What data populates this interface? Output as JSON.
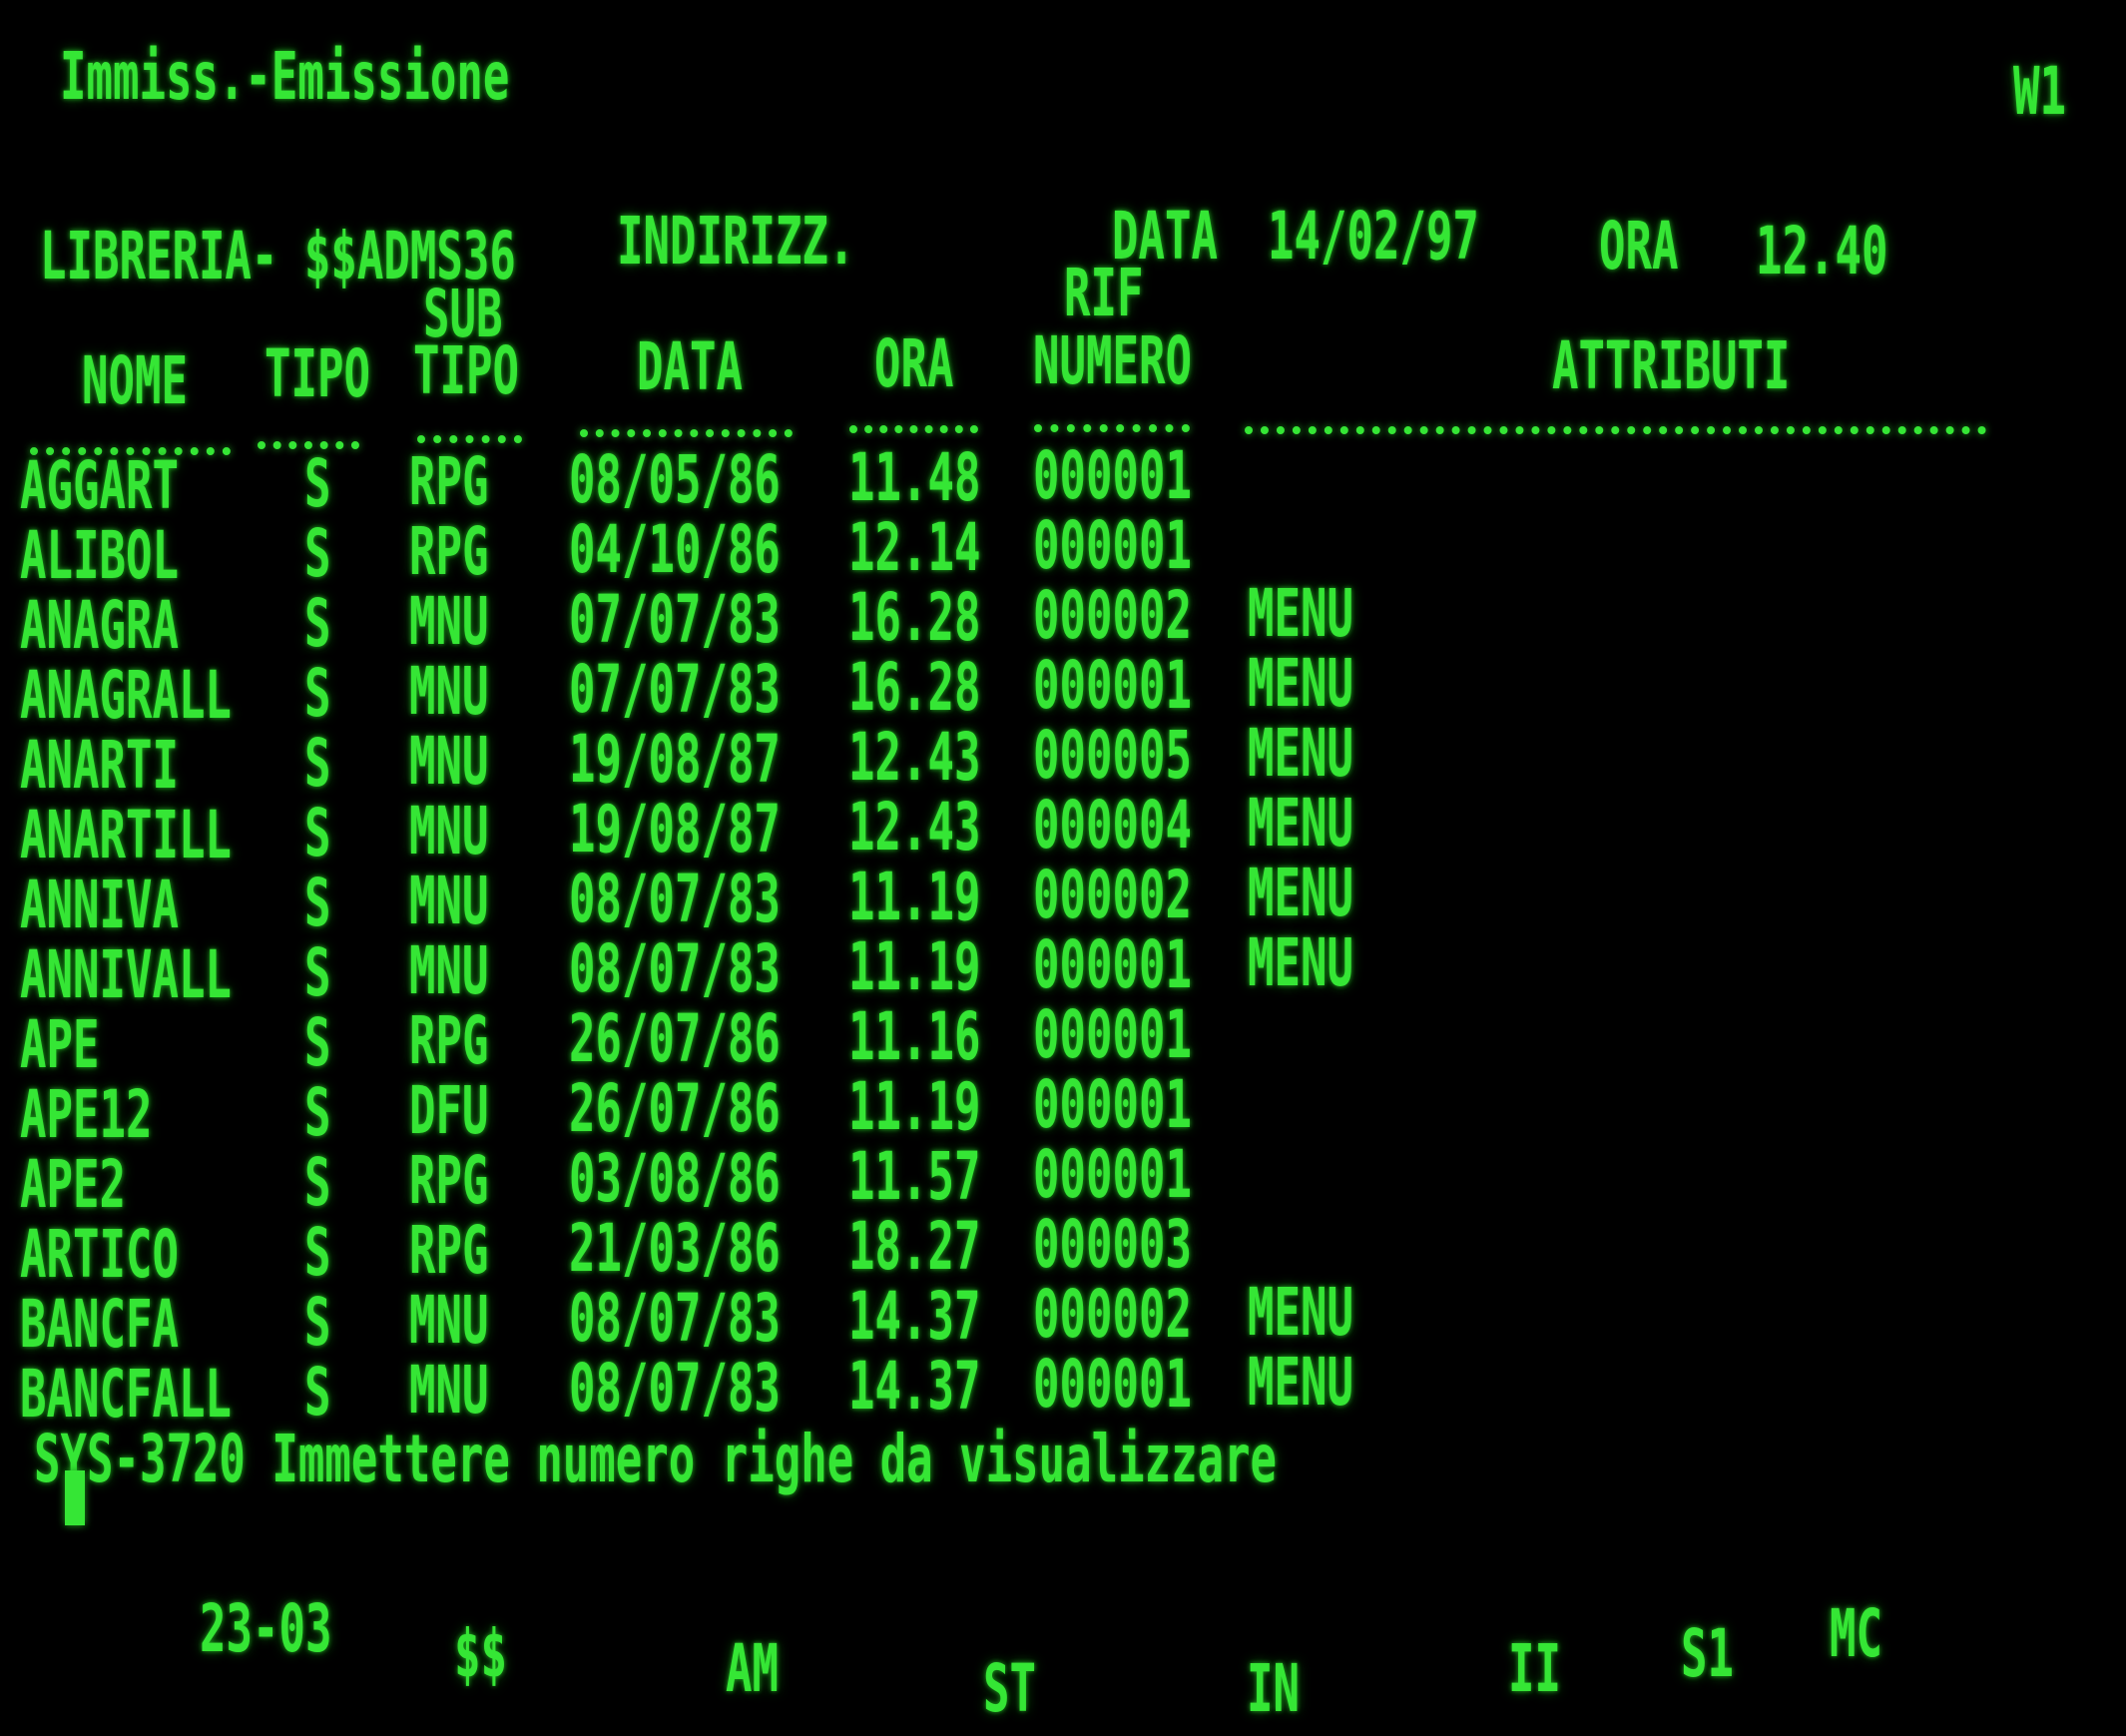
{
  "header": {
    "title": "Immiss.-Emissione",
    "window_id": "W1",
    "library_label": "LIBRERIA- $$ADMS36",
    "mode": "INDIRIZZ.",
    "date_label": "DATA",
    "date_value": "14/02/97",
    "time_label": "ORA",
    "time_value": "12.40"
  },
  "columns": {
    "nome": "NOME",
    "tipo": "TIPO",
    "sub": "SUB",
    "subtipo": "TIPO",
    "data": "DATA",
    "ora": "ORA",
    "rif": "RIF",
    "numero": "NUMERO",
    "attributi": "ATTRIBUTI"
  },
  "rows": [
    [
      "AGGART",
      "S",
      "RPG",
      "08/05/86",
      "11.48",
      "000001",
      ""
    ],
    [
      "ALIBOL",
      "S",
      "RPG",
      "04/10/86",
      "12.14",
      "000001",
      ""
    ],
    [
      "ANAGRA",
      "S",
      "MNU",
      "07/07/83",
      "16.28",
      "000002",
      "MENU"
    ],
    [
      "ANAGRALL",
      "S",
      "MNU",
      "07/07/83",
      "16.28",
      "000001",
      "MENU"
    ],
    [
      "ANARTI",
      "S",
      "MNU",
      "19/08/87",
      "12.43",
      "000005",
      "MENU"
    ],
    [
      "ANARTILL",
      "S",
      "MNU",
      "19/08/87",
      "12.43",
      "000004",
      "MENU"
    ],
    [
      "ANNIVA",
      "S",
      "MNU",
      "08/07/83",
      "11.19",
      "000002",
      "MENU"
    ],
    [
      "ANNIVALL",
      "S",
      "MNU",
      "08/07/83",
      "11.19",
      "000001",
      "MENU"
    ],
    [
      "APE",
      "S",
      "RPG",
      "26/07/86",
      "11.16",
      "000001",
      ""
    ],
    [
      "APE12",
      "S",
      "DFU",
      "26/07/86",
      "11.19",
      "000001",
      ""
    ],
    [
      "APE2",
      "S",
      "RPG",
      "03/08/86",
      "11.57",
      "000001",
      ""
    ],
    [
      "ARTICO",
      "S",
      "RPG",
      "21/03/86",
      "18.27",
      "000003",
      ""
    ],
    [
      "BANCFA",
      "S",
      "MNU",
      "08/07/83",
      "14.37",
      "000002",
      "MENU"
    ],
    [
      "BANCFALL",
      "S",
      "MNU",
      "08/07/83",
      "14.37",
      "000001",
      "MENU"
    ]
  ],
  "message": "SYS-3720 Immettere numero righe da visualizzare",
  "status_bar": [
    "23-03",
    "$$",
    "AM",
    "ST",
    "IN",
    "II",
    "S1",
    "MC"
  ],
  "colors": {
    "phosphor": "#35e635",
    "background": "#000000"
  }
}
